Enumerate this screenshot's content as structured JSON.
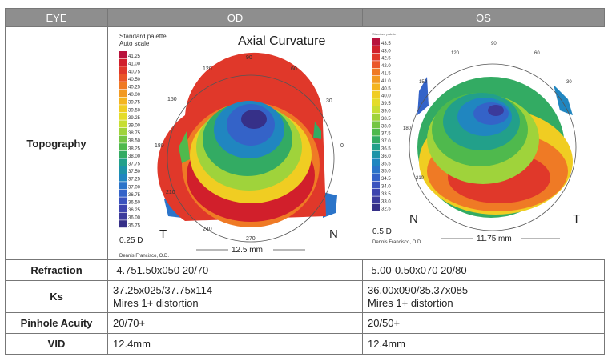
{
  "header": {
    "eye": "EYE",
    "od": "OD",
    "os": "OS"
  },
  "rows": {
    "topography": "Topography",
    "refraction": {
      "label": "Refraction",
      "od": "-4.751.50x050   20/70-",
      "os": "-5.00-0.50x070  20/80-"
    },
    "ks": {
      "label": "Ks",
      "od_line1": "37.25x025/37.75x114",
      "od_line2": "Mires 1+ distortion",
      "os_line1": "36.00x090/35.37x085",
      "os_line2": "Mires 1+ distortion"
    },
    "pinhole": {
      "label": "Pinhole Acuity",
      "od": "20/70+",
      "os": "20/50+"
    },
    "vid": {
      "label": "VID",
      "od": "12.4mm",
      "os": "12.4mm"
    }
  },
  "od_map": {
    "palette_line1": "Standard palette",
    "palette_line2": "Auto scale",
    "title": "Axial Curvature",
    "step": "0.25 D",
    "scale_values": [
      "41.25",
      "41.00",
      "40.75",
      "40.50",
      "40.25",
      "40.00",
      "39.75",
      "39.50",
      "39.25",
      "39.00",
      "38.75",
      "38.50",
      "38.25",
      "38.00",
      "37.75",
      "37.50",
      "37.25",
      "37.00",
      "36.75",
      "36.50",
      "36.25",
      "36.00",
      "35.75"
    ],
    "angles": [
      "90",
      "120",
      "60",
      "150",
      "30",
      "180",
      "0",
      "210",
      "240",
      "270"
    ],
    "temporal": "T",
    "nasal": "N",
    "scale_bar": "12.5 mm",
    "author": "Dennis Francisco, O.D."
  },
  "os_map": {
    "palette_line1": "Standard palette",
    "scale_values": [
      "43.5",
      "43.0",
      "42.5",
      "42.0",
      "41.5",
      "41.0",
      "40.5",
      "40.0",
      "39.5",
      "39.0",
      "38.5",
      "38.0",
      "37.5",
      "37.0",
      "36.5",
      "36.0",
      "35.5",
      "35.0",
      "34.5",
      "34.0",
      "33.5",
      "33.0",
      "32.5"
    ],
    "angles": [
      "90",
      "120",
      "60",
      "150",
      "30",
      "180",
      "210"
    ],
    "step": "0.5 D",
    "nasal": "N",
    "temporal": "T",
    "scale_bar": "11.75 mm",
    "author": "Dennis Francisco, O.D."
  },
  "colors": {
    "header_bg": "#8e8e8e",
    "border": "#777777",
    "scale": [
      "#b8123c",
      "#d11f2b",
      "#e0382a",
      "#ea5628",
      "#ef7a25",
      "#f29a22",
      "#f4b51f",
      "#f0cd22",
      "#e4dc2a",
      "#c7de33",
      "#9fd33b",
      "#74c543",
      "#4fb94d",
      "#33ab63",
      "#22a08a",
      "#1d93a8",
      "#2086c0",
      "#2b74c9",
      "#3463c8",
      "#3a52be",
      "#3d44ae",
      "#3b3a9b",
      "#363088"
    ]
  }
}
